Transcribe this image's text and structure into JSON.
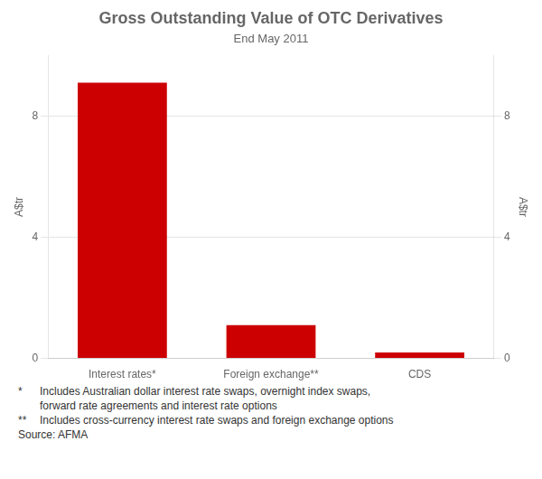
{
  "chart_data": {
    "type": "bar",
    "title": "Gross Outstanding Value of OTC Derivatives",
    "subtitle": "End May 2011",
    "categories": [
      "Interest rates*",
      "Foreign exchange**",
      "CDS"
    ],
    "values": [
      9.1,
      1.1,
      0.2
    ],
    "color": "#cc0000",
    "ylim": [
      0,
      10
    ],
    "yticks": [
      0,
      4,
      8
    ],
    "y2lim": [
      0,
      10
    ],
    "y2ticks": [
      0,
      4,
      8
    ],
    "ylabel": "A$tr",
    "y2label": "A$tr",
    "grid": true,
    "legend": false,
    "footnotes": [
      {
        "marker": "*",
        "lines": [
          "Includes Australian dollar interest rate swaps, overnight index swaps,",
          "forward rate agreements and interest rate options"
        ]
      },
      {
        "marker": "**",
        "lines": [
          "Includes cross-currency interest rate swaps and foreign exchange options"
        ]
      }
    ],
    "source": "Source: AFMA"
  }
}
